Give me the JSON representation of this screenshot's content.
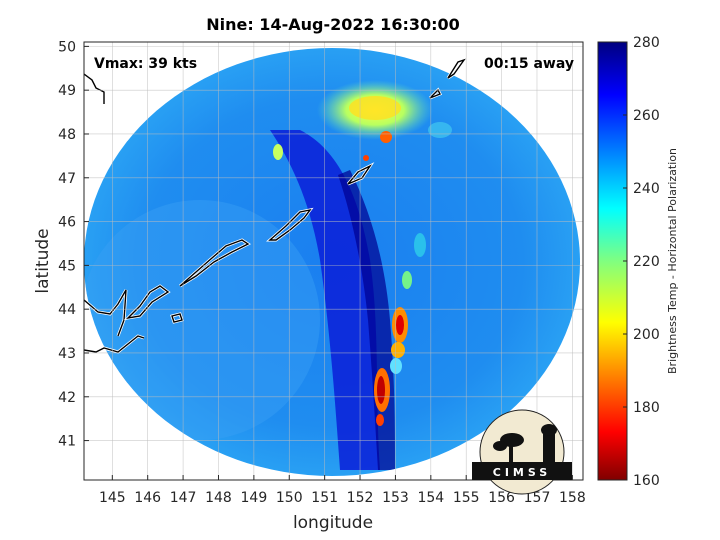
{
  "chart_data": {
    "type": "heatmap",
    "title": "Nine: 14-Aug-2022 16:30:00",
    "xlabel": "longitude",
    "ylabel": "latitude",
    "xlim": [
      144.2,
      158.3
    ],
    "ylim": [
      40.1,
      50.1
    ],
    "x_ticks": [
      "145",
      "146",
      "147",
      "148",
      "149",
      "150",
      "151",
      "152",
      "153",
      "154",
      "155",
      "156",
      "157",
      "158"
    ],
    "y_ticks": [
      "41",
      "42",
      "43",
      "44",
      "45",
      "46",
      "47",
      "48",
      "49",
      "50"
    ],
    "grid": true,
    "annotations": {
      "vmax": "Vmax: 39 kts",
      "away": "00:15 away"
    },
    "colorbar": {
      "label": "Brightness Temp - Horizontal Polarization",
      "range": [
        160,
        280
      ],
      "ticks": [
        "160",
        "180",
        "200",
        "220",
        "240",
        "260",
        "280"
      ],
      "colormap": "jet",
      "colors": [
        "#800000",
        "#ff0000",
        "#ff8000",
        "#ffff00",
        "#80ff80",
        "#00ffff",
        "#0080ff",
        "#0000ff",
        "#000080"
      ]
    },
    "swath": {
      "center_lon": 151.2,
      "center_lat": 45.1,
      "background_temp": 245
    },
    "logo_text": "CIMSS"
  }
}
